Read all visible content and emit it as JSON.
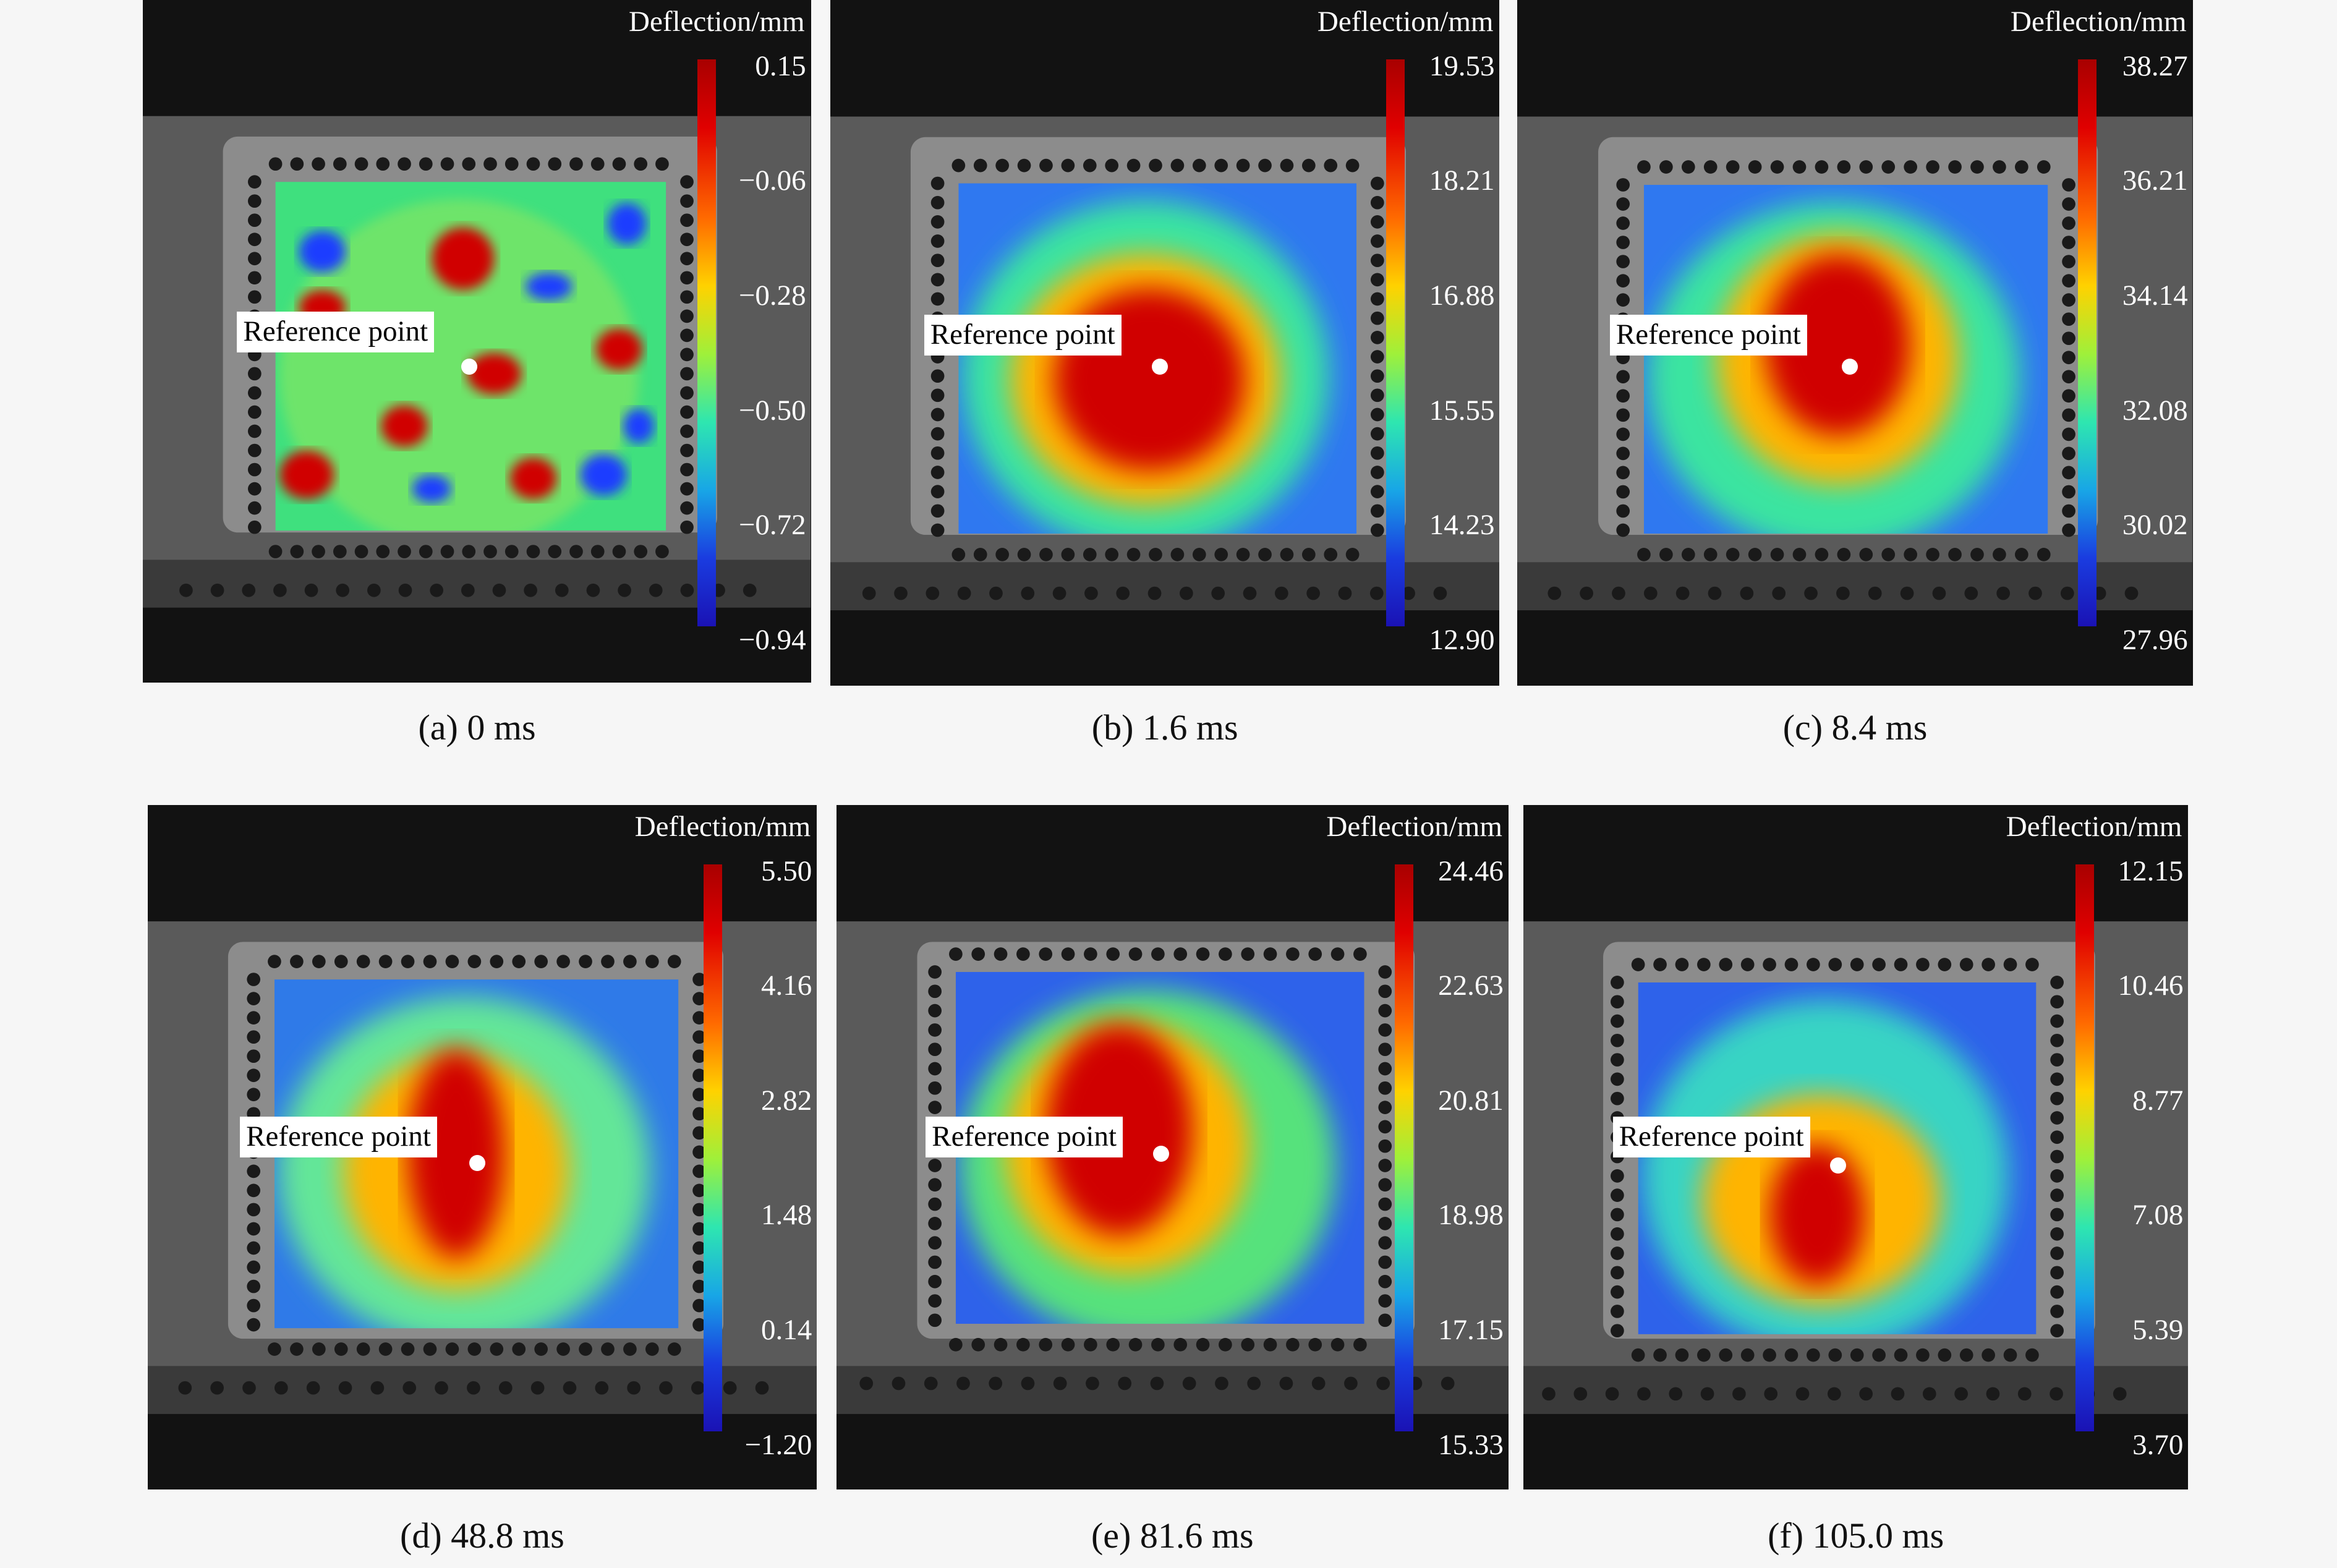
{
  "colorbar_title": "Deflection/mm",
  "reference_label": "Reference point",
  "panels": [
    {
      "caption": "(a) 0 ms",
      "ticks": [
        "0.15",
        "−0.06",
        "−0.28",
        "−0.50",
        "−0.72",
        "−0.94"
      ]
    },
    {
      "caption": "(b) 1.6 ms",
      "ticks": [
        "19.53",
        "18.21",
        "16.88",
        "15.55",
        "14.23",
        "12.90"
      ]
    },
    {
      "caption": "(c) 8.4 ms",
      "ticks": [
        "38.27",
        "36.21",
        "34.14",
        "32.08",
        "30.02",
        "27.96"
      ]
    },
    {
      "caption": "(d) 48.8 ms",
      "ticks": [
        "5.50",
        "4.16",
        "2.82",
        "1.48",
        "0.14",
        "−1.20"
      ]
    },
    {
      "caption": "(e) 81.6 ms",
      "ticks": [
        "24.46",
        "22.63",
        "20.81",
        "18.98",
        "17.15",
        "15.33"
      ]
    },
    {
      "caption": "(f) 105.0 ms",
      "ticks": [
        "12.15",
        "10.46",
        "8.77",
        "7.08",
        "5.39",
        "3.70"
      ]
    }
  ],
  "colors": {
    "high": "#d40000",
    "mid": "#a6f03c",
    "low": "#1e3cff"
  }
}
